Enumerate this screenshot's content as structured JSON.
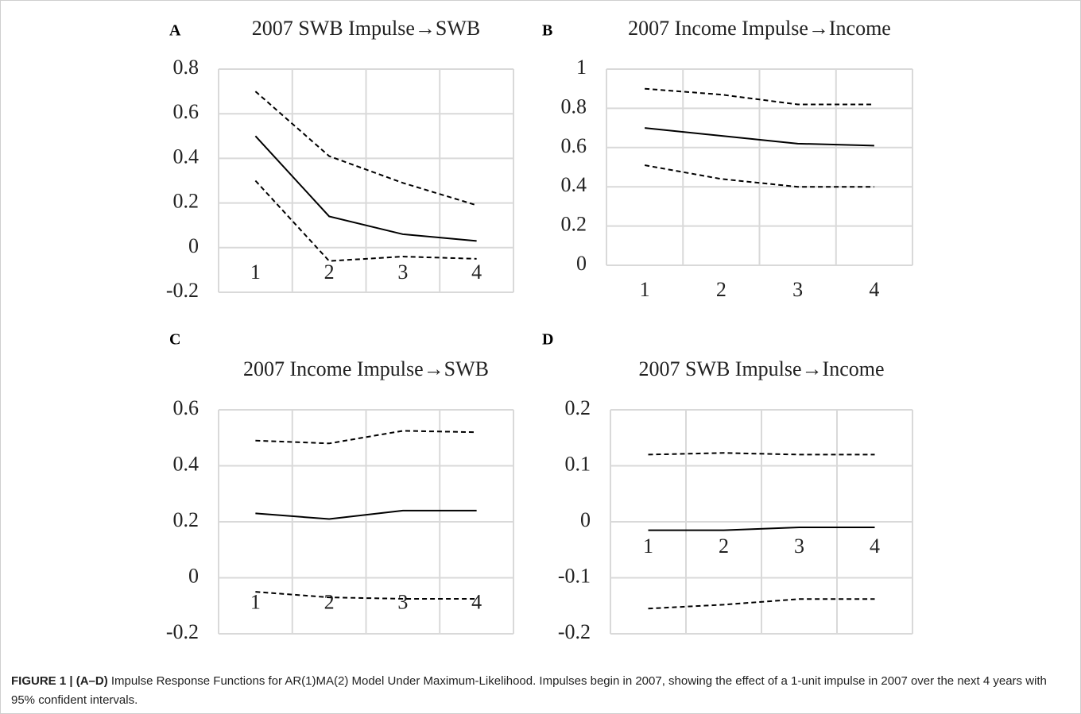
{
  "chart_data": [
    {
      "type": "line",
      "panel": "A",
      "title": "2007 SWB Impulse→SWB",
      "categories": [
        "1",
        "2",
        "3",
        "4"
      ],
      "ylim": [
        -0.2,
        0.8
      ],
      "yticks": [
        -0.2,
        0,
        0.2,
        0.4,
        0.6,
        0.8
      ],
      "grid": true,
      "series": [
        {
          "color": "#000000",
          "dashed": true,
          "values": [
            0.7,
            0.41,
            0.29,
            0.19
          ]
        },
        {
          "color": "#000000",
          "dashed": false,
          "values": [
            0.5,
            0.14,
            0.06,
            0.03
          ]
        },
        {
          "color": "#000000",
          "dashed": true,
          "values": [
            0.3,
            -0.06,
            -0.04,
            -0.05
          ]
        }
      ]
    },
    {
      "type": "line",
      "panel": "B",
      "title": "2007 Income Impulse→Income",
      "categories": [
        "1",
        "2",
        "3",
        "4"
      ],
      "ylim": [
        0,
        1
      ],
      "yticks": [
        0,
        0.2,
        0.4,
        0.6,
        0.8,
        1
      ],
      "grid": true,
      "series": [
        {
          "color": "#000000",
          "dashed": true,
          "values": [
            0.9,
            0.87,
            0.82,
            0.82
          ]
        },
        {
          "color": "#000000",
          "dashed": false,
          "values": [
            0.7,
            0.66,
            0.62,
            0.61
          ]
        },
        {
          "color": "#000000",
          "dashed": true,
          "values": [
            0.51,
            0.44,
            0.4,
            0.4
          ]
        }
      ]
    },
    {
      "type": "line",
      "panel": "C",
      "title": "2007 Income Impulse→SWB",
      "categories": [
        "1",
        "2",
        "3",
        "4"
      ],
      "ylim": [
        -0.2,
        0.6
      ],
      "yticks": [
        -0.2,
        0,
        0.2,
        0.4,
        0.6
      ],
      "grid": true,
      "series": [
        {
          "color": "#000000",
          "dashed": true,
          "values": [
            0.49,
            0.48,
            0.525,
            0.52
          ]
        },
        {
          "color": "#000000",
          "dashed": false,
          "values": [
            0.23,
            0.21,
            0.24,
            0.24
          ]
        },
        {
          "color": "#000000",
          "dashed": true,
          "values": [
            -0.05,
            -0.07,
            -0.075,
            -0.075
          ]
        }
      ]
    },
    {
      "type": "line",
      "panel": "D",
      "title": "2007 SWB Impulse→Income",
      "categories": [
        "1",
        "2",
        "3",
        "4"
      ],
      "ylim": [
        -0.2,
        0.2
      ],
      "yticks": [
        -0.2,
        -0.1,
        0,
        0.1,
        0.2
      ],
      "grid": true,
      "series": [
        {
          "color": "#000000",
          "dashed": true,
          "values": [
            0.12,
            0.123,
            0.12,
            0.12
          ]
        },
        {
          "color": "#000000",
          "dashed": false,
          "values": [
            -0.015,
            -0.015,
            -0.01,
            -0.01
          ]
        },
        {
          "color": "#000000",
          "dashed": true,
          "values": [
            -0.155,
            -0.148,
            -0.138,
            -0.138
          ]
        }
      ]
    }
  ],
  "caption": {
    "label": "FIGURE 1 | (A–D)",
    "text": "Impulse Response Functions for AR(1)MA(2) Model Under Maximum-Likelihood. Impulses begin in 2007, showing the effect of a 1-unit impulse in 2007 over the next 4 years with 95% confident intervals."
  }
}
